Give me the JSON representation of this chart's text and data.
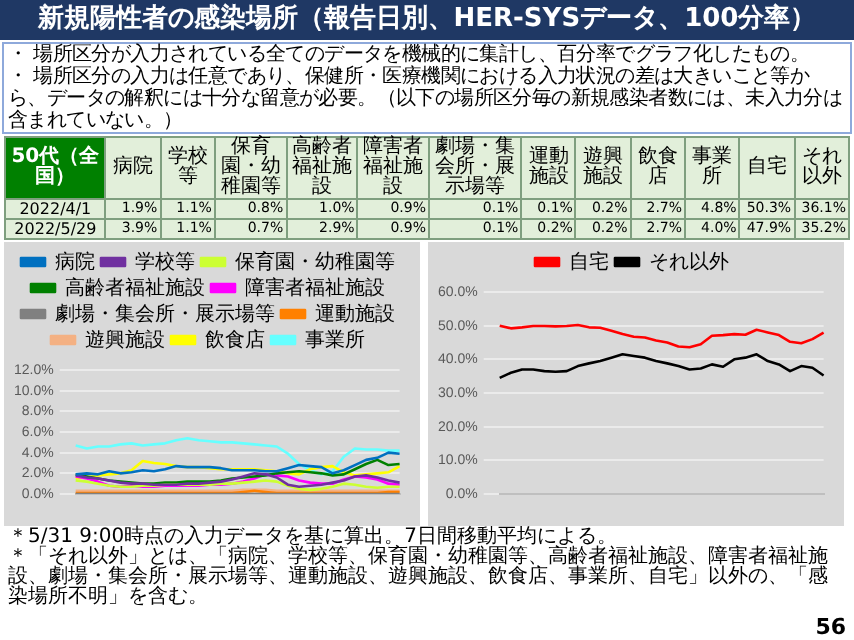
{
  "chart_data": [
    {
      "type": "other",
      "title": "新規陽性者の感染場所（報告日別、HER-SYSデータ、100分率）",
      "annotations": [
        "・ 場所区分が入力されている全てのデータを機械的に集計し、百分率でグラフ化したもの。",
        "・ 場所区分の入力は任意であり、保健所・医療機関における入力状況の差は大きいこと等から、データの解釈には十分な留意が必要。（以下の場所区分毎の新規感染者数には、未入力分は含まれていない。）",
        "50代（全国）",
        "＊5/31 9:00時点の入力データを基に算出。7日間移動平均による。",
        "＊「それ以外」とは、「病院、学校等、保育園・幼稚園等、高齢者福祉施設、障害者福祉施設、劇場・集会所・展示場等、運動施設、遊興施設、飲食店、事業所、自宅」以外の、「感染場所不明」を含む。",
        "56"
      ],
      "categories": [
        "病院",
        "学校等",
        "保育園・幼稚園等",
        "高齢者福祉施設",
        "障害者福祉施設",
        "劇場・集会所・展示場等",
        "運動施設",
        "遊興施設",
        "飲食店",
        "事業所",
        "自宅",
        "それ以外"
      ],
      "series": [
        {
          "name": "2022/4/1",
          "values": [
            1.9,
            1.1,
            0.8,
            1.0,
            0.9,
            0.1,
            0.1,
            0.2,
            2.7,
            4.8,
            50.3,
            36.1
          ],
          "value_labels": [
            "1.9%",
            "1.1%",
            "0.8%",
            "1.0%",
            "0.9%",
            "0.1%",
            "0.1%",
            "0.2%",
            "2.7%",
            "4.8%",
            "50.3%",
            "36.1%"
          ]
        },
        {
          "name": "2022/5/29",
          "values": [
            3.9,
            1.1,
            0.7,
            2.9,
            0.9,
            0.1,
            0.2,
            0.2,
            2.7,
            4.0,
            47.9,
            35.2
          ],
          "value_labels": [
            "3.9%",
            "1.1%",
            "0.7%",
            "2.9%",
            "0.9%",
            "0.1%",
            "0.2%",
            "0.2%",
            "2.7%",
            "4.0%",
            "47.9%",
            "35.2%"
          ]
        }
      ]
    },
    {
      "type": "line",
      "categories": [
        null,
        null,
        null,
        null,
        null,
        null,
        null,
        null,
        null,
        null,
        null,
        null,
        null,
        null,
        null,
        null,
        null,
        null,
        null,
        null,
        null,
        null,
        null,
        null,
        null,
        null,
        null,
        null,
        null,
        null
      ],
      "ylim": [
        0,
        12
      ],
      "yticks": [
        {
          "value": 0,
          "label": "0.0%"
        },
        {
          "value": 2,
          "label": "2.0%"
        },
        {
          "value": 4,
          "label": "4.0%"
        },
        {
          "value": 6,
          "label": "6.0%"
        },
        {
          "value": 8,
          "label": "8.0%"
        },
        {
          "value": 10,
          "label": "10.0%"
        },
        {
          "value": 12,
          "label": "12.0%"
        }
      ],
      "grid": "y",
      "legend": "top",
      "marker": "none",
      "series": [
        {
          "name": "病院",
          "color": "#0070c0",
          "values": [
            1.9,
            2.0,
            1.9,
            2.2,
            2.0,
            2.1,
            2.3,
            2.2,
            2.4,
            2.7,
            2.6,
            2.6,
            2.6,
            2.5,
            2.3,
            2.3,
            2.3,
            2.2,
            2.2,
            2.5,
            2.8,
            2.7,
            2.6,
            2.0,
            2.3,
            2.8,
            3.3,
            3.5,
            4.0,
            3.9
          ]
        },
        {
          "name": "学校等",
          "color": "#7030a0",
          "values": [
            1.8,
            1.6,
            1.5,
            1.3,
            1.1,
            1.0,
            1.0,
            0.9,
            0.9,
            0.9,
            1.0,
            1.0,
            1.1,
            1.2,
            1.4,
            1.7,
            2.0,
            1.9,
            1.6,
            0.9,
            0.7,
            0.8,
            0.9,
            1.1,
            1.3,
            1.7,
            1.8,
            1.6,
            1.3,
            1.1
          ]
        },
        {
          "name": "保育園・幼稚園等",
          "color": "#ccff33",
          "values": [
            1.3,
            1.2,
            1.0,
            0.8,
            0.7,
            0.7,
            0.8,
            0.8,
            0.9,
            0.9,
            0.9,
            0.9,
            0.9,
            1.0,
            1.0,
            1.1,
            1.2,
            1.3,
            1.2,
            0.8,
            0.5,
            0.4,
            0.5,
            0.7,
            1.0,
            0.9,
            0.7,
            0.6,
            0.7,
            0.7
          ]
        },
        {
          "name": "高齢者福祉施設",
          "color": "#008000",
          "values": [
            1.9,
            1.7,
            1.5,
            1.3,
            1.2,
            1.1,
            1.0,
            1.0,
            1.1,
            1.1,
            1.2,
            1.2,
            1.2,
            1.3,
            1.5,
            1.6,
            1.7,
            1.8,
            2.0,
            2.1,
            2.2,
            2.1,
            2.0,
            1.8,
            1.9,
            2.4,
            2.9,
            3.3,
            2.8,
            2.9
          ]
        },
        {
          "name": "障害者福祉施設",
          "color": "#ff00ff",
          "values": [
            1.7,
            1.5,
            1.2,
            0.8,
            0.7,
            0.8,
            0.7,
            0.7,
            0.8,
            0.8,
            0.8,
            0.8,
            0.9,
            0.9,
            1.0,
            1.2,
            1.5,
            1.9,
            1.8,
            1.7,
            1.3,
            1.1,
            1.0,
            1.0,
            1.4,
            1.7,
            1.6,
            1.4,
            1.0,
            0.9
          ]
        },
        {
          "name": "劇場・集会所・展示場等",
          "color": "#808080",
          "values": [
            0.0,
            0.0,
            0.0,
            0.0,
            0.0,
            0.0,
            0.0,
            0.0,
            0.0,
            0.0,
            0.0,
            0.0,
            0.0,
            0.0,
            0.0,
            0.0,
            0.0,
            0.0,
            0.0,
            0.0,
            0.0,
            0.0,
            0.0,
            0.0,
            0.0,
            0.0,
            0.0,
            0.0,
            0.0,
            0.0
          ]
        },
        {
          "name": "運動施設",
          "color": "#ff8000",
          "values": [
            0.1,
            0.1,
            0.1,
            0.1,
            0.1,
            0.1,
            0.1,
            0.1,
            0.1,
            0.1,
            0.1,
            0.1,
            0.1,
            0.1,
            0.1,
            0.2,
            0.3,
            0.2,
            0.1,
            0.1,
            0.1,
            0.1,
            0.1,
            0.1,
            0.1,
            0.1,
            0.1,
            0.1,
            0.2,
            0.2
          ]
        },
        {
          "name": "遊興施設",
          "color": "#f4b183",
          "values": [
            0.3,
            0.3,
            0.3,
            0.3,
            0.3,
            0.3,
            0.3,
            0.3,
            0.3,
            0.3,
            0.3,
            0.3,
            0.3,
            0.3,
            0.3,
            0.4,
            0.4,
            0.4,
            0.3,
            0.3,
            0.3,
            0.3,
            0.3,
            0.3,
            0.3,
            0.3,
            0.3,
            0.3,
            0.3,
            0.3
          ]
        },
        {
          "name": "飲食店",
          "color": "#ffff00",
          "values": [
            1.5,
            1.6,
            1.8,
            1.9,
            2.0,
            2.3,
            3.2,
            3.0,
            2.9,
            2.7,
            2.6,
            2.6,
            2.5,
            2.4,
            2.4,
            2.4,
            2.4,
            2.3,
            2.2,
            2.0,
            1.9,
            2.4,
            2.6,
            2.7,
            2.1,
            1.8,
            1.9,
            2.0,
            2.1,
            2.7
          ]
        },
        {
          "name": "事業所",
          "color": "#66ffff",
          "values": [
            4.7,
            4.4,
            4.6,
            4.6,
            4.8,
            4.9,
            4.7,
            4.8,
            4.9,
            5.2,
            5.4,
            5.2,
            5.1,
            5.0,
            5.0,
            4.9,
            4.8,
            4.7,
            4.6,
            3.9,
            2.9,
            2.3,
            1.9,
            2.2,
            3.6,
            4.4,
            4.3,
            4.3,
            4.2,
            4.2
          ]
        }
      ]
    },
    {
      "type": "line",
      "categories": [
        null,
        null,
        null,
        null,
        null,
        null,
        null,
        null,
        null,
        null,
        null,
        null,
        null,
        null,
        null,
        null,
        null,
        null,
        null,
        null,
        null,
        null,
        null,
        null,
        null,
        null,
        null,
        null,
        null,
        null
      ],
      "ylim": [
        0,
        60
      ],
      "yticks": [
        {
          "value": 0,
          "label": "0.0%"
        },
        {
          "value": 10,
          "label": "10.0%"
        },
        {
          "value": 20,
          "label": "20.0%"
        },
        {
          "value": 30,
          "label": "30.0%"
        },
        {
          "value": 40,
          "label": "40.0%"
        },
        {
          "value": 50,
          "label": "50.0%"
        },
        {
          "value": 60,
          "label": "60.0%"
        }
      ],
      "grid": "y",
      "legend": "top",
      "marker": "none",
      "series": [
        {
          "name": "自宅",
          "color": "#ff0000",
          "values": [
            50.0,
            49.2,
            49.5,
            49.9,
            49.9,
            49.8,
            49.9,
            50.2,
            49.5,
            49.4,
            48.5,
            47.5,
            46.7,
            46.5,
            45.6,
            45.0,
            43.8,
            43.6,
            44.5,
            47.0,
            47.2,
            47.5,
            47.3,
            48.8,
            48.0,
            47.2,
            45.2,
            44.8,
            46.0,
            47.9
          ]
        },
        {
          "name": "それ以外",
          "color": "#000000",
          "values": [
            34.5,
            36.0,
            37.0,
            37.0,
            36.5,
            36.3,
            36.5,
            38.0,
            38.8,
            39.5,
            40.5,
            41.5,
            41.0,
            40.5,
            39.5,
            38.8,
            38.0,
            37.0,
            37.3,
            38.5,
            37.8,
            40.0,
            40.5,
            41.5,
            39.5,
            38.5,
            36.5,
            38.0,
            37.5,
            35.2
          ]
        }
      ]
    }
  ]
}
